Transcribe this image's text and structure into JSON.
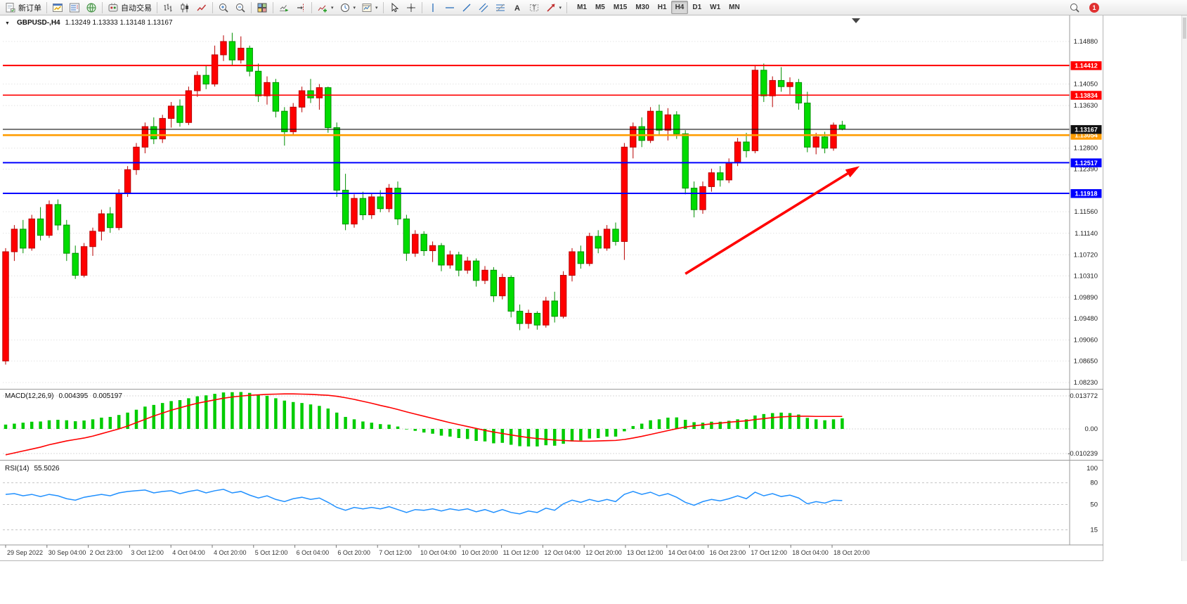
{
  "toolbar": {
    "buttons": [
      {
        "name": "new-order-button",
        "icon": "new-order-icon",
        "label": "新订单"
      },
      {
        "sep": true
      },
      {
        "name": "chart-window-button",
        "icon": "chart-window-icon"
      },
      {
        "name": "market-watch-button",
        "icon": "market-watch-icon"
      },
      {
        "name": "data-window-button",
        "icon": "data-window-icon"
      },
      {
        "sep": true
      },
      {
        "name": "autotrading-button",
        "icon": "autotrading-icon",
        "label": "自动交易"
      },
      {
        "sep": true
      },
      {
        "name": "bar-chart-button",
        "icon": "bar-chart-icon"
      },
      {
        "name": "candlestick-chart-button",
        "icon": "candlestick-icon"
      },
      {
        "name": "line-chart-button",
        "icon": "line-chart-icon"
      },
      {
        "sep": true
      },
      {
        "name": "zoom-in-button",
        "icon": "zoom-in-icon"
      },
      {
        "name": "zoom-out-button",
        "icon": "zoom-out-icon"
      },
      {
        "sep": true
      },
      {
        "name": "tile-windows-button",
        "icon": "tile-windows-icon"
      },
      {
        "sep": true
      },
      {
        "name": "auto-scroll-button",
        "icon": "auto-scroll-icon"
      },
      {
        "name": "chart-shift-button",
        "icon": "chart-shift-icon"
      },
      {
        "sep": true
      },
      {
        "name": "indicators-button",
        "icon": "indicators-icon",
        "caret": true
      },
      {
        "name": "periods-button",
        "icon": "periods-icon",
        "caret": true
      },
      {
        "name": "templates-button",
        "icon": "templates-icon",
        "caret": true
      },
      {
        "sep": true
      },
      {
        "name": "cursor-button",
        "icon": "cursor-icon"
      },
      {
        "name": "crosshair-button",
        "icon": "crosshair-icon"
      },
      {
        "sep": true
      },
      {
        "name": "vertical-line-button",
        "icon": "vertical-line-icon"
      },
      {
        "name": "horizontal-line-button",
        "icon": "horizontal-line-icon"
      },
      {
        "name": "trendline-button",
        "icon": "trendline-icon"
      },
      {
        "name": "channel-button",
        "icon": "channel-icon"
      },
      {
        "name": "fibonacci-button",
        "icon": "fibonacci-icon"
      },
      {
        "name": "text-button",
        "icon": "text-icon"
      },
      {
        "name": "label-button",
        "icon": "label-icon"
      },
      {
        "name": "arrows-button",
        "icon": "arrows-icon",
        "caret": true
      },
      {
        "sep": true
      }
    ],
    "timeframes": [
      "M1",
      "M5",
      "M15",
      "M30",
      "H1",
      "H4",
      "D1",
      "W1",
      "MN"
    ],
    "selected_timeframe": "H4",
    "notification_count": "1"
  },
  "chart_data": {
    "type": "candlestick",
    "symbol_period_label": "GBPUSD-,H4",
    "ohlc_text": "1.13249 1.13333 1.13148 1.13167",
    "open": "1.13249",
    "high": "1.13333",
    "low": "1.13148",
    "close": "1.13167",
    "up_color": "#ff0000",
    "down_color": "#00dc00",
    "price_axis_labels": [
      "1.14880",
      "1.14050",
      "1.13630",
      "1.12800",
      "1.12390",
      "1.11560",
      "1.11140",
      "1.10720",
      "1.10310",
      "1.09890",
      "1.09480",
      "1.09060",
      "1.08650",
      "1.08230"
    ],
    "hlines": [
      {
        "price": 1.14412,
        "label": "1.14412",
        "color": "#ff0000",
        "width": 2
      },
      {
        "price": 1.13834,
        "label": "1.13834",
        "color": "#ff0000",
        "width": 1.6
      },
      {
        "price": 1.13054,
        "label": "1.13054",
        "color": "#ff9c00",
        "width": 2.6
      },
      {
        "price": 1.13167,
        "label": "1.13167",
        "color": "#111111",
        "width": 1.1
      },
      {
        "price": 1.12517,
        "label": "1.12517",
        "color": "#0000ff",
        "width": 2
      },
      {
        "price": 1.11918,
        "label": "1.11918",
        "color": "#0000ff",
        "width": 2
      }
    ],
    "trend_arrow": {
      "from_index": 78,
      "from_price": 1.1035,
      "to_index": 98,
      "to_price": 1.1245,
      "color": "#ff0000"
    },
    "time_labels": [
      "29 Sep 2022",
      "30 Sep 04:00",
      "2 Oct 23:00",
      "3 Oct 12:00",
      "4 Oct 04:00",
      "4 Oct 20:00",
      "5 Oct 12:00",
      "6 Oct 04:00",
      "6 Oct 20:00",
      "7 Oct 12:00",
      "10 Oct 04:00",
      "10 Oct 20:00",
      "11 Oct 12:00",
      "12 Oct 04:00",
      "12 Oct 20:00",
      "13 Oct 12:00",
      "14 Oct 04:00",
      "16 Oct 23:00",
      "17 Oct 12:00",
      "18 Oct 04:00",
      "18 Oct 20:00"
    ],
    "candles": [
      [
        1.0865,
        1.1085,
        1.0858,
        1.1078
      ],
      [
        1.1078,
        1.113,
        1.106,
        1.1122
      ],
      [
        1.1122,
        1.114,
        1.1075,
        1.1085
      ],
      [
        1.1085,
        1.115,
        1.108,
        1.1142
      ],
      [
        1.1142,
        1.1165,
        1.11,
        1.111
      ],
      [
        1.111,
        1.1178,
        1.1105,
        1.117
      ],
      [
        1.117,
        1.118,
        1.112,
        1.113
      ],
      [
        1.113,
        1.114,
        1.106,
        1.1075
      ],
      [
        1.1075,
        1.109,
        1.1025,
        1.1032
      ],
      [
        1.1032,
        1.1095,
        1.1028,
        1.1088
      ],
      [
        1.1088,
        1.1125,
        1.107,
        1.1118
      ],
      [
        1.1118,
        1.116,
        1.11,
        1.1152
      ],
      [
        1.1152,
        1.1165,
        1.1115,
        1.1125
      ],
      [
        1.1125,
        1.12,
        1.112,
        1.1192
      ],
      [
        1.1192,
        1.1245,
        1.1185,
        1.1238
      ],
      [
        1.1238,
        1.129,
        1.1228,
        1.1282
      ],
      [
        1.1282,
        1.133,
        1.127,
        1.1322
      ],
      [
        1.1322,
        1.134,
        1.1288,
        1.1298
      ],
      [
        1.1298,
        1.1345,
        1.129,
        1.1338
      ],
      [
        1.1338,
        1.137,
        1.132,
        1.1362
      ],
      [
        1.1362,
        1.1375,
        1.1322,
        1.133
      ],
      [
        1.133,
        1.14,
        1.1325,
        1.1392
      ],
      [
        1.1392,
        1.143,
        1.138,
        1.1422
      ],
      [
        1.1422,
        1.144,
        1.1395,
        1.1405
      ],
      [
        1.1405,
        1.148,
        1.14,
        1.1462
      ],
      [
        1.1462,
        1.15,
        1.145,
        1.1488
      ],
      [
        1.1488,
        1.1505,
        1.144,
        1.1452
      ],
      [
        1.1452,
        1.1498,
        1.1445,
        1.1475
      ],
      [
        1.1475,
        1.148,
        1.142,
        1.143
      ],
      [
        1.143,
        1.1445,
        1.137,
        1.1382
      ],
      [
        1.1382,
        1.142,
        1.1365,
        1.1408
      ],
      [
        1.1408,
        1.1415,
        1.134,
        1.1352
      ],
      [
        1.1352,
        1.136,
        1.1285,
        1.1312
      ],
      [
        1.1312,
        1.1368,
        1.1305,
        1.136
      ],
      [
        1.136,
        1.14,
        1.135,
        1.1392
      ],
      [
        1.1392,
        1.1415,
        1.1368,
        1.1378
      ],
      [
        1.1378,
        1.1405,
        1.1355,
        1.1398
      ],
      [
        1.1398,
        1.14,
        1.131,
        1.132
      ],
      [
        1.132,
        1.133,
        1.1185,
        1.1198
      ],
      [
        1.1198,
        1.123,
        1.112,
        1.1132
      ],
      [
        1.1132,
        1.119,
        1.1125,
        1.1182
      ],
      [
        1.1182,
        1.1195,
        1.114,
        1.115
      ],
      [
        1.115,
        1.1192,
        1.1142,
        1.1185
      ],
      [
        1.1185,
        1.1198,
        1.1155,
        1.1162
      ],
      [
        1.1162,
        1.121,
        1.1155,
        1.1202
      ],
      [
        1.1202,
        1.1215,
        1.113,
        1.1142
      ],
      [
        1.1142,
        1.115,
        1.106,
        1.1075
      ],
      [
        1.1075,
        1.112,
        1.1068,
        1.1112
      ],
      [
        1.1112,
        1.1118,
        1.107,
        1.108
      ],
      [
        1.108,
        1.1098,
        1.1058,
        1.109
      ],
      [
        1.109,
        1.1095,
        1.104,
        1.1052
      ],
      [
        1.1052,
        1.108,
        1.1045,
        1.1072
      ],
      [
        1.1072,
        1.1078,
        1.103,
        1.1042
      ],
      [
        1.1042,
        1.1068,
        1.1035,
        1.106
      ],
      [
        1.106,
        1.1065,
        1.101,
        1.1022
      ],
      [
        1.1022,
        1.105,
        1.1015,
        1.1042
      ],
      [
        1.1042,
        1.1048,
        1.098,
        1.0992
      ],
      [
        1.0992,
        1.1035,
        1.0985,
        1.1028
      ],
      [
        1.1028,
        1.1032,
        1.095,
        1.0962
      ],
      [
        1.0962,
        1.0975,
        1.0925,
        1.0938
      ],
      [
        1.0938,
        1.0965,
        1.0928,
        1.0958
      ],
      [
        1.0958,
        1.0962,
        1.0926,
        1.0935
      ],
      [
        1.0935,
        1.099,
        1.093,
        1.0982
      ],
      [
        1.0982,
        1.1,
        1.094,
        1.0952
      ],
      [
        1.0952,
        1.104,
        1.0948,
        1.1032
      ],
      [
        1.1032,
        1.1085,
        1.102,
        1.1078
      ],
      [
        1.1078,
        1.109,
        1.1045,
        1.1055
      ],
      [
        1.1055,
        1.1115,
        1.105,
        1.1108
      ],
      [
        1.1108,
        1.112,
        1.1075,
        1.1085
      ],
      [
        1.1085,
        1.113,
        1.108,
        1.1122
      ],
      [
        1.1122,
        1.1135,
        1.109,
        1.1098
      ],
      [
        1.1098,
        1.129,
        1.1062,
        1.1282
      ],
      [
        1.1282,
        1.133,
        1.126,
        1.1322
      ],
      [
        1.1322,
        1.134,
        1.1282,
        1.1295
      ],
      [
        1.1295,
        1.136,
        1.129,
        1.1352
      ],
      [
        1.1352,
        1.1365,
        1.1305,
        1.1315
      ],
      [
        1.1315,
        1.1358,
        1.1295,
        1.1345
      ],
      [
        1.1345,
        1.1352,
        1.1298,
        1.1308
      ],
      [
        1.1308,
        1.1315,
        1.119,
        1.1202
      ],
      [
        1.1202,
        1.1215,
        1.1145,
        1.116
      ],
      [
        1.116,
        1.1215,
        1.1152,
        1.1205
      ],
      [
        1.1205,
        1.124,
        1.1195,
        1.1232
      ],
      [
        1.1232,
        1.1245,
        1.1205,
        1.1218
      ],
      [
        1.1218,
        1.126,
        1.1212,
        1.1252
      ],
      [
        1.1252,
        1.13,
        1.1245,
        1.1292
      ],
      [
        1.1292,
        1.131,
        1.1262,
        1.1275
      ],
      [
        1.1275,
        1.144,
        1.127,
        1.1432
      ],
      [
        1.1432,
        1.1445,
        1.137,
        1.1382
      ],
      [
        1.1382,
        1.142,
        1.136,
        1.1412
      ],
      [
        1.1412,
        1.1438,
        1.139,
        1.14
      ],
      [
        1.14,
        1.1418,
        1.1385,
        1.1408
      ],
      [
        1.1408,
        1.1415,
        1.1355,
        1.1368
      ],
      [
        1.1368,
        1.139,
        1.1272,
        1.1282
      ],
      [
        1.1282,
        1.131,
        1.1268,
        1.1302
      ],
      [
        1.1302,
        1.1312,
        1.127,
        1.128
      ],
      [
        1.128,
        1.133,
        1.1275,
        1.1325
      ],
      [
        1.13249,
        1.13333,
        1.13148,
        1.13167
      ]
    ],
    "macd": {
      "label": "MACD(12,26,9)",
      "value": "0.004395",
      "signal_value": "0.005197",
      "histogram_color": "#00cc00",
      "signal_color": "#ff0000",
      "axis_labels": [
        {
          "text": "0.013772",
          "value": 0.013772
        },
        {
          "text": "0.00",
          "value": 0
        },
        {
          "text": "-0.010239",
          "value": -0.010239
        }
      ],
      "histogram": [
        0.0018,
        0.0022,
        0.0026,
        0.003,
        0.0031,
        0.0036,
        0.0038,
        0.0036,
        0.0032,
        0.0035,
        0.004,
        0.0047,
        0.005,
        0.0058,
        0.0068,
        0.008,
        0.0093,
        0.01,
        0.0108,
        0.0116,
        0.012,
        0.0128,
        0.0136,
        0.014,
        0.0146,
        0.0152,
        0.0153,
        0.0154,
        0.015,
        0.0143,
        0.0138,
        0.0128,
        0.0118,
        0.0112,
        0.0108,
        0.0102,
        0.0096,
        0.0085,
        0.0068,
        0.005,
        0.004,
        0.0031,
        0.0026,
        0.002,
        0.0018,
        0.001,
        -0.0002,
        -0.0008,
        -0.0015,
        -0.002,
        -0.0028,
        -0.0032,
        -0.0038,
        -0.0042,
        -0.005,
        -0.0052,
        -0.006,
        -0.0058,
        -0.0066,
        -0.0072,
        -0.0073,
        -0.0073,
        -0.0068,
        -0.007,
        -0.0062,
        -0.0052,
        -0.0048,
        -0.004,
        -0.0038,
        -0.0032,
        -0.0032,
        -0.001,
        0.0012,
        0.0022,
        0.0036,
        0.004,
        0.0047,
        0.0048,
        0.0038,
        0.0028,
        0.0026,
        0.003,
        0.003,
        0.0034,
        0.004,
        0.004,
        0.0056,
        0.0062,
        0.0066,
        0.0068,
        0.0066,
        0.006,
        0.0046,
        0.004,
        0.0036,
        0.004,
        0.0044
      ],
      "signal": [
        -0.0108,
        -0.01,
        -0.0092,
        -0.0084,
        -0.0076,
        -0.0066,
        -0.0058,
        -0.005,
        -0.0044,
        -0.0038,
        -0.003,
        -0.002,
        -0.001,
        0.0,
        0.0012,
        0.0026,
        0.004,
        0.0054,
        0.0066,
        0.0078,
        0.0088,
        0.0098,
        0.0107,
        0.0114,
        0.0121,
        0.0128,
        0.0133,
        0.0137,
        0.014,
        0.0142,
        0.0144,
        0.0145,
        0.0146,
        0.0146,
        0.0145,
        0.0144,
        0.0142,
        0.014,
        0.0136,
        0.013,
        0.0123,
        0.0115,
        0.0107,
        0.0098,
        0.009,
        0.0081,
        0.0071,
        0.0062,
        0.0053,
        0.0044,
        0.0035,
        0.0026,
        0.0018,
        0.001,
        0.0002,
        -0.0006,
        -0.0013,
        -0.0019,
        -0.0025,
        -0.0031,
        -0.0036,
        -0.004,
        -0.0043,
        -0.0046,
        -0.0048,
        -0.005,
        -0.0051,
        -0.0051,
        -0.005,
        -0.0049,
        -0.0048,
        -0.0044,
        -0.0038,
        -0.0031,
        -0.0023,
        -0.0015,
        -0.0007,
        0.0001,
        0.0008,
        0.0013,
        0.0017,
        0.0021,
        0.0024,
        0.0028,
        0.0031,
        0.0034,
        0.0039,
        0.0043,
        0.0047,
        0.005,
        0.0052,
        0.0053,
        0.0053,
        0.0052,
        0.0052,
        0.0052,
        0.0052
      ]
    },
    "rsi": {
      "label": "RSI(14)",
      "value": "55.5026",
      "line_color": "#2090ff",
      "levels": [
        {
          "text": "100",
          "value": 100,
          "line": false
        },
        {
          "text": "80",
          "value": 80,
          "line": true
        },
        {
          "text": "50",
          "value": 50,
          "line": true
        },
        {
          "text": "15",
          "value": 15,
          "line": true
        }
      ],
      "values": [
        64,
        65,
        62,
        64,
        61,
        64,
        62,
        58,
        56,
        60,
        62,
        64,
        62,
        66,
        68,
        69,
        70,
        66,
        68,
        69,
        65,
        68,
        70,
        66,
        69,
        71,
        66,
        68,
        63,
        59,
        62,
        57,
        54,
        58,
        60,
        57,
        59,
        53,
        46,
        42,
        46,
        44,
        46,
        44,
        47,
        43,
        39,
        43,
        42,
        44,
        41,
        44,
        42,
        44,
        40,
        43,
        39,
        43,
        39,
        37,
        41,
        39,
        45,
        42,
        51,
        56,
        53,
        57,
        54,
        57,
        54,
        64,
        68,
        64,
        67,
        62,
        65,
        60,
        53,
        49,
        54,
        57,
        55,
        58,
        62,
        58,
        67,
        62,
        65,
        61,
        63,
        59,
        51,
        54,
        52,
        56,
        55.5
      ]
    }
  }
}
